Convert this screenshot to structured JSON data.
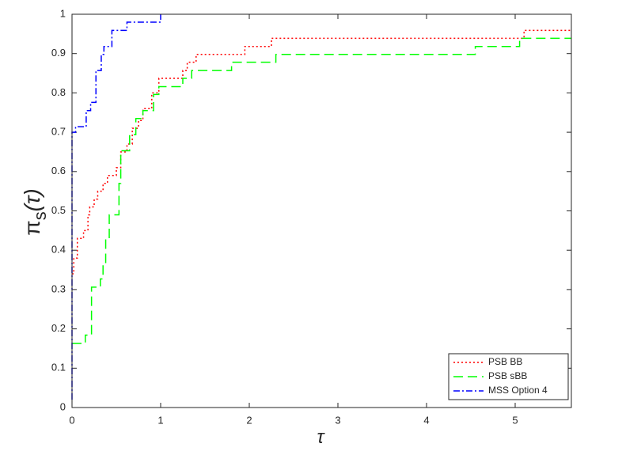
{
  "chart_data": {
    "type": "step",
    "xlabel": "τ",
    "ylabel": [
      "π",
      "s",
      "(τ)"
    ],
    "xlim": [
      0,
      5.634
    ],
    "ylim": [
      0,
      1
    ],
    "xticks": [
      0,
      1,
      2,
      3,
      4,
      5
    ],
    "yticks": [
      0,
      0.1,
      0.2,
      0.3,
      0.4,
      0.5,
      0.6,
      0.7,
      0.8,
      0.9,
      1
    ],
    "grid": false,
    "legend": "lower right",
    "series": [
      {
        "name": "PSB BB",
        "color": "#ff0000",
        "dash": "2,3",
        "x": [
          0,
          0.02,
          0.06,
          0.13,
          0.18,
          0.2,
          0.25,
          0.29,
          0.35,
          0.4,
          0.5,
          0.55,
          0.62,
          0.68,
          0.75,
          0.8,
          0.9,
          0.98,
          1.25,
          1.3,
          1.4,
          1.95,
          2.25,
          5.1,
          5.63
        ],
        "values": [
          0.34,
          0.38,
          0.43,
          0.45,
          0.49,
          0.51,
          0.53,
          0.55,
          0.57,
          0.59,
          0.61,
          0.65,
          0.67,
          0.71,
          0.73,
          0.76,
          0.8,
          0.837,
          0.857,
          0.878,
          0.898,
          0.918,
          0.939,
          0.959,
          0.959
        ]
      },
      {
        "name": "PSB sBB",
        "color": "#00ff00",
        "dash": "12,6",
        "x": [
          0,
          0.15,
          0.22,
          0.32,
          0.35,
          0.38,
          0.42,
          0.53,
          0.55,
          0.65,
          0.72,
          0.8,
          0.92,
          0.98,
          1.25,
          1.35,
          1.8,
          2.3,
          4.55,
          5.05,
          5.63
        ],
        "values": [
          0.163,
          0.184,
          0.306,
          0.327,
          0.367,
          0.43,
          0.49,
          0.57,
          0.653,
          0.694,
          0.735,
          0.755,
          0.796,
          0.816,
          0.837,
          0.857,
          0.878,
          0.898,
          0.918,
          0.939,
          0.939
        ]
      },
      {
        "name": "MSS Option 4",
        "color": "#0000ff",
        "dash": "8,3,2,3",
        "x": [
          0,
          0,
          0.04,
          0.16,
          0.21,
          0.27,
          0.33,
          0.36,
          0.45,
          0.62,
          1.0
        ],
        "values": [
          0.02,
          0.7,
          0.714,
          0.755,
          0.776,
          0.857,
          0.898,
          0.918,
          0.959,
          0.98,
          1.0
        ]
      }
    ]
  }
}
